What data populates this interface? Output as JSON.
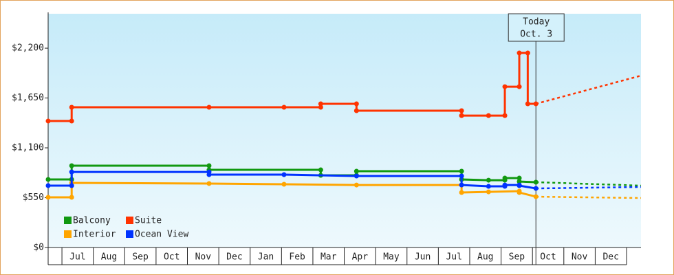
{
  "chart_data": {
    "type": "step-line",
    "xlim": [
      -0.44,
      18.46
    ],
    "ylim": [
      0,
      2580
    ],
    "yticks": [
      {
        "value": 0,
        "label": "$0"
      },
      {
        "value": 550,
        "label": "$550"
      },
      {
        "value": 1100,
        "label": "$1,100"
      },
      {
        "value": 1650,
        "label": "$1,650"
      },
      {
        "value": 2200,
        "label": "$2,200"
      }
    ],
    "xticks": [
      {
        "value": 0.5,
        "label": "Jul"
      },
      {
        "value": 1.5,
        "label": "Aug"
      },
      {
        "value": 2.5,
        "label": "Sep"
      },
      {
        "value": 3.5,
        "label": "Oct"
      },
      {
        "value": 4.5,
        "label": "Nov"
      },
      {
        "value": 5.5,
        "label": "Dec"
      },
      {
        "value": 6.5,
        "label": "Jan"
      },
      {
        "value": 7.5,
        "label": "Feb"
      },
      {
        "value": 8.5,
        "label": "Mar"
      },
      {
        "value": 9.5,
        "label": "Apr"
      },
      {
        "value": 10.5,
        "label": "May"
      },
      {
        "value": 11.5,
        "label": "Jun"
      },
      {
        "value": 12.5,
        "label": "Jul"
      },
      {
        "value": 13.5,
        "label": "Aug"
      },
      {
        "value": 14.5,
        "label": "Sep"
      },
      {
        "value": 15.5,
        "label": "Oct"
      },
      {
        "value": 16.5,
        "label": "Nov"
      },
      {
        "value": 17.5,
        "label": "Dec"
      }
    ],
    "annotation": {
      "x": 15.11,
      "lines": [
        "Today",
        "Oct. 3"
      ]
    },
    "forecast_x": [
      15.11,
      18.46
    ],
    "series": [
      {
        "name": "Balcony",
        "color": "#119911",
        "x": [
          -0.44,
          0.31,
          0.31,
          4.69,
          4.69,
          8.25,
          8.25,
          9.39,
          9.39,
          12.74,
          12.74,
          13.6,
          14.12,
          14.12,
          14.58,
          14.58,
          15.11
        ],
        "values": [
          751,
          751,
          903,
          903,
          857,
          857,
          797,
          797,
          842,
          842,
          751,
          743,
          743,
          766,
          766,
          728,
          721
        ],
        "forecast_values": [
          721,
          683
        ]
      },
      {
        "name": "Suite",
        "color": "#ff3300",
        "x": [
          -0.44,
          0.31,
          0.31,
          4.69,
          7.08,
          8.25,
          8.25,
          9.39,
          9.39,
          12.74,
          12.74,
          13.6,
          14.12,
          14.12,
          14.58,
          14.58,
          14.85,
          14.85,
          15.11
        ],
        "values": [
          1396,
          1396,
          1548,
          1548,
          1548,
          1548,
          1586,
          1586,
          1510,
          1510,
          1456,
          1456,
          1456,
          1775,
          1775,
          2147,
          2147,
          1586,
          1586
        ],
        "forecast_values": [
          1586,
          1897
        ]
      },
      {
        "name": "Interior",
        "color": "#ffa500",
        "x": [
          -0.44,
          0.31,
          0.31,
          4.69,
          7.08,
          9.39,
          12.74,
          12.74,
          13.6,
          14.58,
          14.58,
          15.11
        ],
        "values": [
          554,
          554,
          713,
          706,
          698,
          690,
          690,
          607,
          614,
          622,
          607,
          561
        ],
        "forecast_values": [
          561,
          546
        ]
      },
      {
        "name": "Ocean View",
        "color": "#0033ff",
        "x": [
          -0.44,
          0.31,
          0.31,
          4.69,
          4.69,
          7.08,
          9.39,
          12.74,
          12.74,
          13.6,
          14.12,
          14.12,
          14.58,
          14.58,
          15.11
        ],
        "values": [
          683,
          683,
          834,
          834,
          804,
          804,
          789,
          789,
          690,
          675,
          675,
          690,
          690,
          683,
          652
        ],
        "forecast_values": [
          652,
          668
        ]
      }
    ]
  }
}
